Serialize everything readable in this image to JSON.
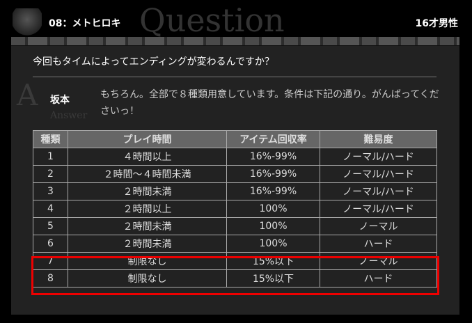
{
  "header": {
    "bg_word": "Question",
    "title": "08：メトヒロキ",
    "age": "16才男性"
  },
  "question": "今回もタイムによってエンディングが変わるんですか？",
  "answer": {
    "bg_word": "Answer",
    "speaker": "坂本",
    "text": "もちろん。全部で８種類用意しています。条件は下記の通り。がんばってくださいっ！"
  },
  "table": {
    "headers": [
      "種類",
      "プレイ時間",
      "アイテム回収率",
      "難易度"
    ],
    "rows": [
      [
        "1",
        "４時間以上",
        "16%-99%",
        "ノーマル/ハード"
      ],
      [
        "2",
        "２時間～４時間未満",
        "16%-99%",
        "ノーマル/ハード"
      ],
      [
        "3",
        "２時間未満",
        "16%-99%",
        "ノーマル/ハード"
      ],
      [
        "4",
        "２時間以上",
        "100%",
        "ノーマル/ハード"
      ],
      [
        "5",
        "２時間未満",
        "100%",
        "ノーマル"
      ],
      [
        "6",
        "２時間未満",
        "100%",
        "ハード"
      ],
      [
        "7",
        "制限なし",
        "15%以下",
        "ノーマル"
      ],
      [
        "8",
        "制限なし",
        "15%以下",
        "ハード"
      ]
    ]
  },
  "highlight_color": "#ee0000"
}
